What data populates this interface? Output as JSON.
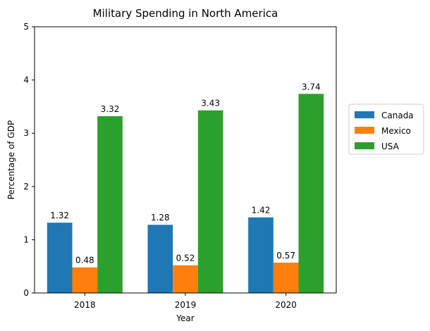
{
  "chart_data": {
    "type": "bar",
    "title": "Military Spending in North America",
    "xlabel": "Year",
    "ylabel": "Percentage of GDP",
    "categories": [
      "2018",
      "2019",
      "2020"
    ],
    "series": [
      {
        "name": "Canada",
        "values": [
          1.32,
          1.28,
          1.42
        ],
        "color": "#1f77b4"
      },
      {
        "name": "Mexico",
        "values": [
          0.48,
          0.52,
          0.57
        ],
        "color": "#ff7f0e"
      },
      {
        "name": "USA",
        "values": [
          3.32,
          3.43,
          3.74
        ],
        "color": "#2ca02c"
      }
    ],
    "ylim": [
      0,
      5
    ],
    "yticks": [
      0,
      1,
      2,
      3,
      4,
      5
    ],
    "data_labels": true,
    "grid": false,
    "legend_position": "right"
  }
}
